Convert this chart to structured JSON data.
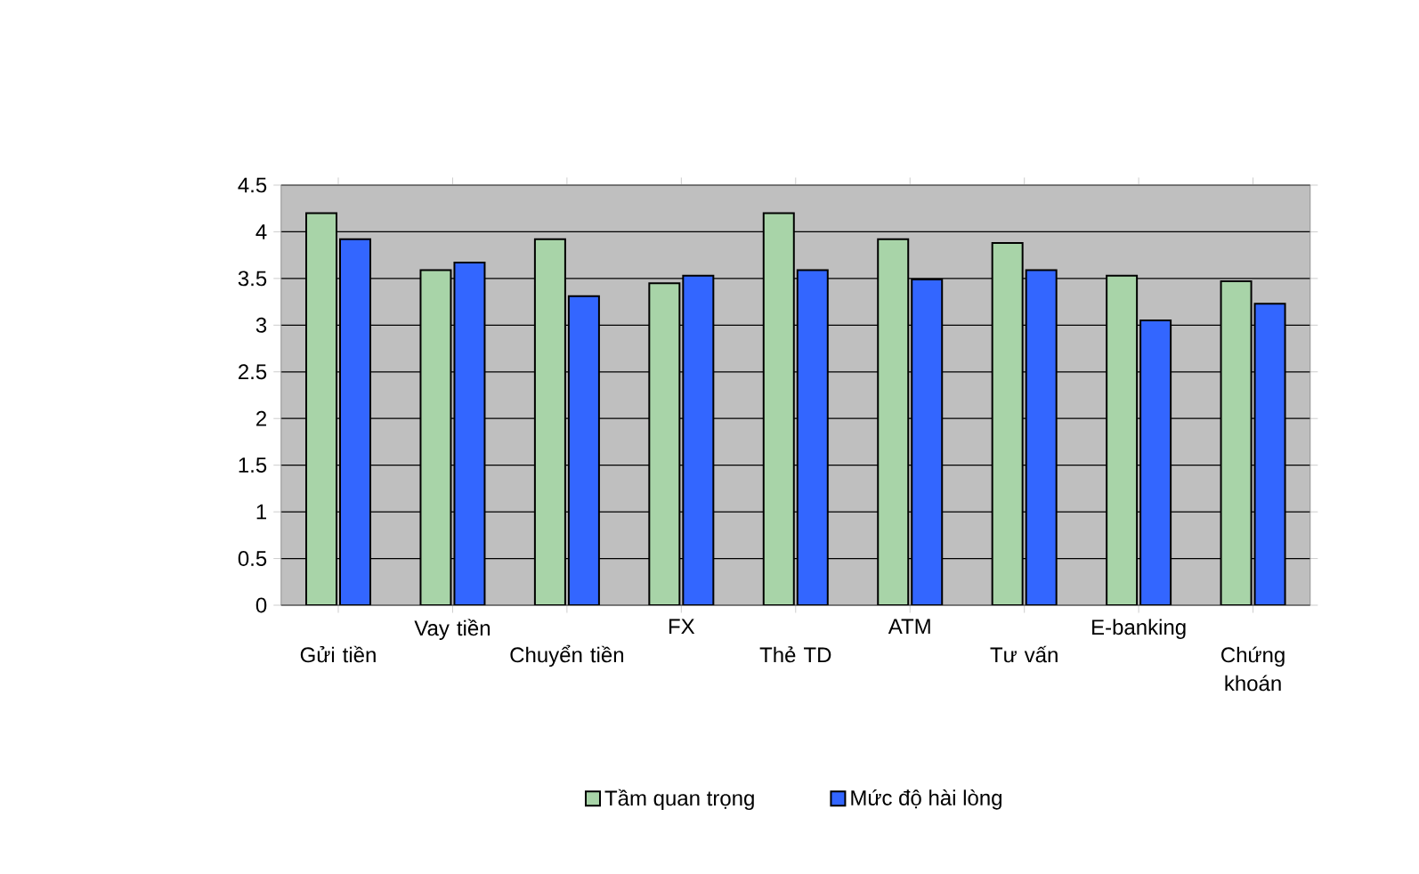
{
  "chart_data": {
    "type": "bar",
    "categories": [
      "Gửi tiền",
      "Vay tiền",
      "Chuyển tiền",
      "FX",
      "Thẻ TD",
      "ATM",
      "Tư vấn",
      "E-banking",
      "Chứng khoán"
    ],
    "series": [
      {
        "name": "Tầm quan trọng",
        "color": "#a8d4a8",
        "values": [
          4.2,
          3.59,
          3.92,
          3.45,
          4.2,
          3.92,
          3.88,
          3.53,
          3.47
        ]
      },
      {
        "name": "Mức độ hài lòng",
        "color": "#3366ff",
        "values": [
          3.92,
          3.67,
          3.31,
          3.53,
          3.59,
          3.49,
          3.59,
          3.05,
          3.23
        ]
      }
    ],
    "ylim": [
      0,
      4.5
    ],
    "yticks": [
      0,
      0.5,
      1,
      1.5,
      2,
      2.5,
      3,
      3.5,
      4,
      4.5
    ],
    "grid": "y",
    "legend": "bottom"
  }
}
